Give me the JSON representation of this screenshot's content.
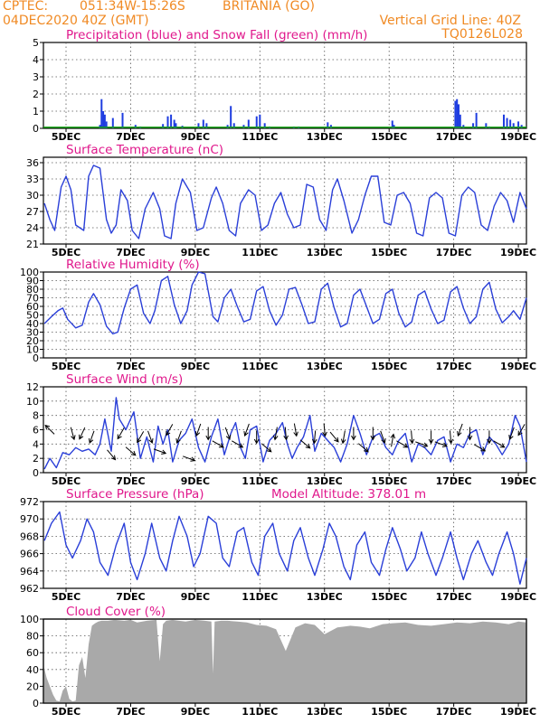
{
  "header": {
    "source": "CPTEC:",
    "coords": "051:34W-15:26S",
    "station": "BRITANIA (GO)",
    "run": "04DEC2020 40Z (GMT)",
    "grid_note": "Vertical Grid Line: 40Z",
    "code": "TQ0126L028"
  },
  "colors": {
    "header_text": "#f08a24",
    "panel_title": "#e0188c",
    "precip": "#1f3de0",
    "snow": "#10a010",
    "line": "#2a3fd8",
    "cloud": "#a9a9a9",
    "grid": "#555555"
  },
  "x_axis": {
    "ticks": [
      1,
      3,
      5,
      7,
      9,
      11,
      13,
      15
    ],
    "tick_labels": [
      "5DEC",
      "7DEC",
      "9DEC",
      "11DEC",
      "13DEC",
      "15DEC",
      "17DEC",
      "19DEC"
    ],
    "range": [
      0.3,
      15.25
    ],
    "vertical_grid": "dotted"
  },
  "chart_data": [
    {
      "type": "bar",
      "title": "Precipitation (blue) and Snow Fall (green) (mm/h)",
      "ylim": [
        0,
        5
      ],
      "yticks": [
        0,
        1,
        2,
        3,
        4,
        5
      ],
      "series": [
        {
          "name": "Precipitation",
          "color": "#1f3de0",
          "points": [
            [
              2.05,
              0.2
            ],
            [
              2.1,
              1.7
            ],
            [
              2.15,
              1.0
            ],
            [
              2.2,
              0.8
            ],
            [
              2.25,
              0.4
            ],
            [
              2.45,
              0.6
            ],
            [
              2.75,
              0.9
            ],
            [
              3.15,
              0.2
            ],
            [
              3.3,
              0.1
            ],
            [
              4.0,
              0.25
            ],
            [
              4.15,
              0.7
            ],
            [
              4.25,
              0.8
            ],
            [
              4.35,
              0.5
            ],
            [
              4.4,
              0.3
            ],
            [
              4.6,
              0.15
            ],
            [
              5.1,
              0.3
            ],
            [
              5.25,
              0.5
            ],
            [
              5.35,
              0.3
            ],
            [
              6.0,
              0.2
            ],
            [
              6.1,
              1.3
            ],
            [
              6.2,
              0.3
            ],
            [
              6.5,
              0.2
            ],
            [
              6.65,
              0.5
            ],
            [
              6.9,
              0.7
            ],
            [
              7.0,
              0.8
            ],
            [
              7.15,
              0.3
            ],
            [
              7.3,
              0.1
            ],
            [
              8.05,
              0.1
            ],
            [
              8.2,
              0.1
            ],
            [
              9.1,
              0.35
            ],
            [
              9.2,
              0.2
            ],
            [
              11.1,
              0.45
            ],
            [
              11.15,
              0.2
            ],
            [
              13.05,
              1.6
            ],
            [
              13.1,
              1.7
            ],
            [
              13.15,
              1.4
            ],
            [
              13.2,
              0.8
            ],
            [
              13.3,
              0.2
            ],
            [
              13.6,
              0.3
            ],
            [
              13.7,
              0.9
            ],
            [
              14.0,
              0.3
            ],
            [
              14.1,
              0.1
            ],
            [
              14.55,
              0.8
            ],
            [
              14.65,
              0.6
            ],
            [
              14.75,
              0.5
            ],
            [
              14.85,
              0.3
            ],
            [
              15.0,
              0.4
            ],
            [
              15.1,
              0.2
            ]
          ]
        },
        {
          "name": "Snow Fall",
          "color": "#10a010",
          "baseline": 0.06
        }
      ]
    },
    {
      "type": "line",
      "title": "Surface Temperature (nC)",
      "ylim": [
        21,
        37
      ],
      "yticks": [
        21,
        24,
        27,
        30,
        33,
        36
      ],
      "x": [
        0.33,
        0.5,
        0.65,
        0.85,
        1.0,
        1.15,
        1.3,
        1.55,
        1.7,
        1.85,
        2.05,
        2.25,
        2.4,
        2.55,
        2.7,
        2.9,
        3.05,
        3.25,
        3.45,
        3.7,
        3.9,
        4.05,
        4.25,
        4.4,
        4.6,
        4.85,
        5.05,
        5.25,
        5.5,
        5.65,
        5.85,
        6.05,
        6.25,
        6.4,
        6.65,
        6.85,
        7.05,
        7.25,
        7.45,
        7.65,
        7.85,
        8.05,
        8.25,
        8.45,
        8.65,
        8.85,
        9.05,
        9.25,
        9.4,
        9.6,
        9.85,
        10.05,
        10.25,
        10.45,
        10.65,
        10.85,
        11.05,
        11.25,
        11.45,
        11.65,
        11.85,
        12.05,
        12.25,
        12.45,
        12.65,
        12.85,
        13.05,
        13.25,
        13.45,
        13.65,
        13.85,
        14.05,
        14.25,
        14.45,
        14.65,
        14.85,
        15.05,
        15.25
      ],
      "values": [
        28.5,
        25.5,
        23.5,
        31.5,
        33.5,
        31.0,
        24.5,
        23.5,
        33.5,
        35.5,
        35.0,
        25.5,
        23.0,
        24.5,
        31.0,
        29.0,
        23.5,
        22.0,
        27.5,
        30.5,
        27.5,
        22.5,
        22.0,
        28.5,
        33.0,
        30.5,
        23.5,
        24.0,
        29.5,
        31.5,
        28.5,
        23.5,
        22.5,
        28.5,
        31.0,
        30.0,
        23.5,
        24.5,
        28.5,
        30.5,
        26.5,
        24.0,
        24.5,
        32.0,
        31.5,
        25.5,
        23.5,
        31.0,
        33.0,
        29.0,
        23.0,
        25.5,
        30.0,
        33.5,
        33.5,
        25.0,
        24.5,
        30.0,
        30.5,
        28.5,
        23.0,
        22.5,
        29.5,
        30.5,
        29.5,
        23.0,
        22.5,
        30.0,
        31.5,
        30.5,
        24.5,
        23.5,
        28.0,
        30.5,
        29.0,
        25.0,
        30.5,
        27.5
      ]
    },
    {
      "type": "line",
      "title": "Relative Humidity (%)",
      "ylim": [
        0,
        100
      ],
      "yticks": [
        0,
        10,
        20,
        30,
        40,
        50,
        60,
        70,
        80,
        90,
        100
      ],
      "x": [
        0.33,
        0.55,
        0.75,
        0.9,
        1.05,
        1.3,
        1.5,
        1.7,
        1.85,
        2.05,
        2.25,
        2.45,
        2.6,
        2.8,
        3.0,
        3.2,
        3.4,
        3.6,
        3.75,
        3.95,
        4.15,
        4.35,
        4.55,
        4.75,
        4.9,
        5.1,
        5.3,
        5.55,
        5.7,
        5.9,
        6.1,
        6.3,
        6.5,
        6.7,
        6.9,
        7.1,
        7.3,
        7.5,
        7.7,
        7.9,
        8.1,
        8.3,
        8.5,
        8.7,
        8.9,
        9.1,
        9.3,
        9.5,
        9.7,
        9.9,
        10.1,
        10.3,
        10.5,
        10.7,
        10.9,
        11.1,
        11.3,
        11.5,
        11.7,
        11.9,
        12.1,
        12.3,
        12.5,
        12.7,
        12.9,
        13.1,
        13.3,
        13.5,
        13.7,
        13.9,
        14.1,
        14.3,
        14.5,
        14.7,
        14.85,
        15.05,
        15.25
      ],
      "values": [
        40,
        48,
        55,
        58,
        45,
        35,
        38,
        65,
        75,
        62,
        37,
        28,
        30,
        58,
        80,
        85,
        52,
        40,
        55,
        90,
        95,
        62,
        40,
        55,
        85,
        100,
        98,
        48,
        42,
        70,
        80,
        60,
        42,
        45,
        78,
        83,
        55,
        38,
        50,
        80,
        82,
        62,
        40,
        42,
        80,
        87,
        58,
        36,
        40,
        73,
        80,
        60,
        40,
        45,
        75,
        80,
        52,
        36,
        42,
        73,
        78,
        57,
        40,
        44,
        77,
        83,
        58,
        40,
        48,
        80,
        88,
        57,
        41,
        48,
        55,
        45,
        70
      ]
    },
    {
      "type": "line",
      "title": "Surface Wind (m/s)",
      "ylim": [
        0,
        12
      ],
      "yticks": [
        0,
        2,
        4,
        6,
        8,
        10,
        12
      ],
      "x": [
        0.33,
        0.5,
        0.7,
        0.9,
        1.1,
        1.3,
        1.5,
        1.7,
        1.9,
        2.05,
        2.2,
        2.4,
        2.55,
        2.65,
        2.85,
        3.0,
        3.1,
        3.3,
        3.5,
        3.7,
        3.85,
        4.0,
        4.15,
        4.3,
        4.5,
        4.7,
        4.9,
        5.1,
        5.3,
        5.5,
        5.7,
        5.9,
        6.1,
        6.25,
        6.4,
        6.55,
        6.7,
        6.9,
        7.1,
        7.3,
        7.5,
        7.7,
        7.85,
        8.0,
        8.15,
        8.35,
        8.55,
        8.7,
        8.9,
        9.1,
        9.3,
        9.5,
        9.7,
        9.9,
        10.1,
        10.3,
        10.5,
        10.7,
        10.9,
        11.1,
        11.3,
        11.5,
        11.7,
        11.9,
        12.1,
        12.3,
        12.5,
        12.7,
        12.9,
        13.1,
        13.3,
        13.5,
        13.7,
        13.9,
        14.1,
        14.3,
        14.5,
        14.7,
        14.9,
        15.05,
        15.25
      ],
      "values": [
        0.5,
        2.0,
        0.7,
        2.8,
        2.5,
        3.5,
        3.0,
        3.3,
        2.5,
        4.0,
        7.5,
        3.0,
        10.5,
        7.5,
        6.0,
        7.5,
        8.5,
        2.0,
        5.0,
        1.5,
        6.5,
        4.0,
        6.0,
        1.5,
        4.5,
        5.5,
        7.5,
        3.5,
        1.5,
        5.0,
        7.5,
        2.5,
        5.5,
        7.0,
        3.5,
        2.0,
        6.0,
        6.5,
        1.5,
        4.5,
        5.5,
        7.0,
        4.0,
        2.0,
        3.5,
        5.0,
        8.0,
        3.0,
        5.5,
        4.5,
        3.5,
        1.5,
        4.0,
        8.0,
        5.5,
        2.5,
        5.0,
        5.5,
        3.5,
        2.5,
        4.5,
        5.5,
        1.5,
        4.0,
        3.5,
        2.5,
        4.5,
        5.0,
        1.5,
        4.0,
        3.5,
        5.5,
        6.0,
        2.5,
        5.0,
        4.0,
        2.5,
        4.0,
        8.0,
        6.5,
        1.5
      ],
      "arrows": [
        [
          0.5,
          6.0,
          -45
        ],
        [
          1.2,
          5.5,
          165
        ],
        [
          1.5,
          5.5,
          205
        ],
        [
          1.8,
          5.0,
          200
        ],
        [
          2.4,
          2.5,
          140
        ],
        [
          2.7,
          5.5,
          210
        ],
        [
          3.0,
          3.0,
          130
        ],
        [
          3.3,
          5.0,
          210
        ],
        [
          3.6,
          5.0,
          160
        ],
        [
          3.9,
          3.0,
          110
        ],
        [
          4.2,
          6.0,
          210
        ],
        [
          4.5,
          5.0,
          200
        ],
        [
          4.8,
          2.0,
          110
        ],
        [
          5.1,
          6.0,
          200
        ],
        [
          5.4,
          5.5,
          180
        ],
        [
          5.7,
          4.0,
          120
        ],
        [
          6.0,
          5.5,
          160
        ],
        [
          6.3,
          4.0,
          120
        ],
        [
          6.6,
          6.0,
          200
        ],
        [
          6.9,
          5.0,
          180
        ],
        [
          7.2,
          3.5,
          130
        ],
        [
          7.5,
          5.5,
          190
        ],
        [
          7.8,
          5.5,
          175
        ],
        [
          8.1,
          6.0,
          170
        ],
        [
          8.4,
          4.0,
          130
        ],
        [
          8.7,
          5.0,
          185
        ],
        [
          9.0,
          6.0,
          175
        ],
        [
          9.3,
          5.0,
          140
        ],
        [
          9.6,
          5.0,
          190
        ],
        [
          9.9,
          5.5,
          180
        ],
        [
          10.2,
          3.5,
          130
        ],
        [
          10.5,
          5.5,
          180
        ],
        [
          10.8,
          5.0,
          160
        ],
        [
          11.1,
          4.5,
          10
        ],
        [
          11.4,
          4.0,
          120
        ],
        [
          11.7,
          5.0,
          175
        ],
        [
          12.0,
          4.0,
          110
        ],
        [
          12.3,
          5.0,
          180
        ],
        [
          12.6,
          4.0,
          110
        ],
        [
          12.9,
          5.0,
          175
        ],
        [
          13.2,
          6.0,
          200
        ],
        [
          13.5,
          5.5,
          180
        ],
        [
          13.8,
          3.5,
          120
        ],
        [
          14.1,
          5.0,
          180
        ],
        [
          14.4,
          4.0,
          120
        ],
        [
          14.8,
          5.5,
          200
        ],
        [
          15.1,
          6.0,
          210
        ]
      ]
    },
    {
      "type": "line",
      "title": "Surface Pressure (hPa)",
      "annotation": "Model Altitude: 378.01 m",
      "ylim": [
        962,
        972
      ],
      "yticks": [
        962,
        964,
        966,
        968,
        970,
        972
      ],
      "x": [
        0.33,
        0.55,
        0.8,
        1.0,
        1.2,
        1.45,
        1.65,
        1.85,
        2.05,
        2.3,
        2.55,
        2.8,
        3.0,
        3.2,
        3.45,
        3.65,
        3.9,
        4.1,
        4.3,
        4.5,
        4.75,
        4.95,
        5.15,
        5.4,
        5.65,
        5.85,
        6.05,
        6.3,
        6.5,
        6.75,
        6.95,
        7.15,
        7.4,
        7.6,
        7.85,
        8.05,
        8.25,
        8.5,
        8.7,
        8.95,
        9.15,
        9.35,
        9.6,
        9.8,
        10.0,
        10.25,
        10.45,
        10.7,
        10.9,
        11.1,
        11.35,
        11.55,
        11.8,
        12.0,
        12.2,
        12.45,
        12.65,
        12.9,
        13.1,
        13.3,
        13.55,
        13.75,
        14.0,
        14.2,
        14.4,
        14.65,
        14.85,
        15.05,
        15.25
      ],
      "values": [
        967.5,
        969.5,
        970.8,
        967.0,
        965.5,
        967.5,
        970.0,
        968.5,
        965.0,
        963.5,
        967.0,
        969.5,
        965.0,
        963.0,
        966.0,
        969.5,
        965.5,
        964.0,
        967.5,
        970.3,
        968.0,
        964.5,
        966.0,
        970.3,
        969.5,
        965.5,
        964.5,
        968.5,
        969.0,
        965.0,
        963.5,
        968.0,
        969.5,
        966.0,
        964.0,
        967.5,
        969.0,
        965.5,
        963.5,
        966.5,
        969.5,
        968.0,
        964.5,
        963.0,
        967.0,
        968.5,
        965.0,
        963.5,
        966.5,
        969.0,
        966.5,
        964.0,
        965.5,
        968.5,
        966.0,
        963.5,
        965.5,
        968.5,
        965.5,
        963.0,
        966.0,
        967.5,
        965.0,
        963.5,
        966.0,
        968.5,
        966.0,
        962.5,
        965.5
      ]
    },
    {
      "type": "area",
      "title": "Cloud Cover (%)",
      "ylim": [
        0,
        100
      ],
      "yticks": [
        0,
        20,
        40,
        60,
        80,
        100
      ],
      "x": [
        0.3,
        0.4,
        0.5,
        0.6,
        0.7,
        0.8,
        0.9,
        1.0,
        1.1,
        1.2,
        1.3,
        1.4,
        1.5,
        1.6,
        1.7,
        1.8,
        1.9,
        2.0,
        2.1,
        2.3,
        2.5,
        2.8,
        3.0,
        3.2,
        3.5,
        3.8,
        3.9,
        4.0,
        4.1,
        4.3,
        4.5,
        4.7,
        5.0,
        5.3,
        5.5,
        5.55,
        5.6,
        5.8,
        6.0,
        6.3,
        6.6,
        6.9,
        7.2,
        7.5,
        7.8,
        8.1,
        8.4,
        8.7,
        9.0,
        9.4,
        9.8,
        10.1,
        10.4,
        10.8,
        11.1,
        11.5,
        11.9,
        12.3,
        12.7,
        13.1,
        13.5,
        13.9,
        14.3,
        14.7,
        15.0,
        15.25
      ],
      "values": [
        45,
        30,
        20,
        10,
        3,
        2,
        15,
        20,
        5,
        2,
        3,
        45,
        55,
        30,
        70,
        92,
        95,
        97,
        98,
        98,
        99,
        98,
        99,
        96,
        98,
        99,
        50,
        94,
        98,
        99,
        98,
        97,
        99,
        98,
        97,
        35,
        97,
        98,
        98,
        97,
        96,
        93,
        92,
        88,
        62,
        90,
        95,
        93,
        82,
        90,
        92,
        91,
        89,
        94,
        95,
        96,
        93,
        92,
        94,
        96,
        95,
        97,
        96,
        94,
        97,
        96
      ]
    }
  ]
}
